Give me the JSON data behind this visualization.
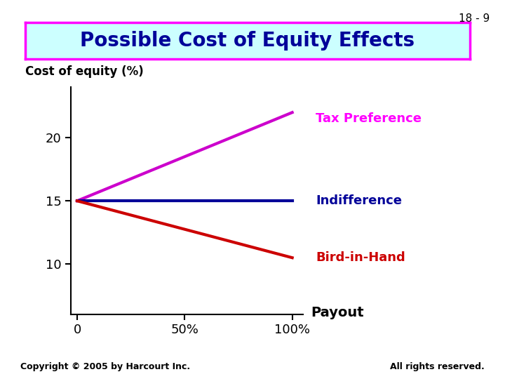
{
  "slide_number": "18 - 9",
  "title": "Possible Cost of Equity Effects",
  "title_bg": "#ccffff",
  "title_border": "#ff00ff",
  "title_fontsize": 20,
  "title_color": "#000099",
  "ylabel": "Cost of equity (%)",
  "xlabel_payout": "Payout",
  "yticks": [
    10,
    15,
    20
  ],
  "xtick_labels": [
    "0",
    "50%",
    "100%"
  ],
  "xtick_positions": [
    0,
    50,
    100
  ],
  "ylim": [
    6,
    24
  ],
  "xlim": [
    -3,
    105
  ],
  "lines": [
    {
      "label": "Tax Preference",
      "x": [
        0,
        100
      ],
      "y": [
        15,
        22
      ],
      "color": "#cc00cc",
      "linewidth": 3
    },
    {
      "label": "Indifference",
      "x": [
        0,
        100
      ],
      "y": [
        15,
        15
      ],
      "color": "#000099",
      "linewidth": 3
    },
    {
      "label": "Bird-in-Hand",
      "x": [
        0,
        100
      ],
      "y": [
        15,
        10.5
      ],
      "color": "#cc0000",
      "linewidth": 3
    }
  ],
  "label_colors": {
    "Tax Preference": "#ff00ff",
    "Indifference": "#000099",
    "Bird-in-Hand": "#cc0000"
  },
  "copyright": "Copyright © 2005 by Harcourt Inc.",
  "rights": "All rights reserved.",
  "bg_color": "#ffffff",
  "tick_fontsize": 13,
  "annotation_fontsize": 13
}
